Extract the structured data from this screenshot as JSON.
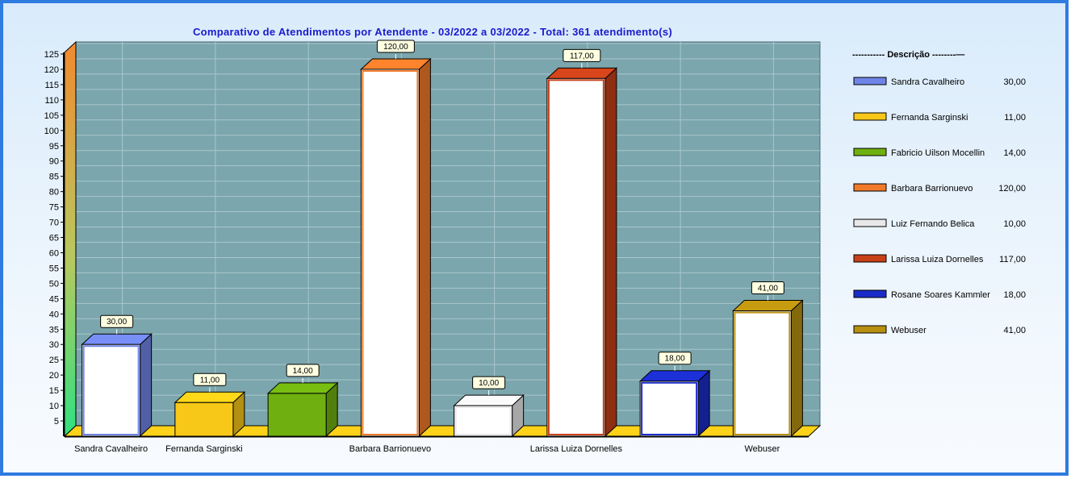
{
  "chart_data": {
    "type": "bar",
    "title": "Comparativo de Atendimentos por Atendente - 03/2022 a 03/2022 - Total: 361 atendimento(s)",
    "categories": [
      "Sandra Cavalheiro",
      "Fernanda Sarginski",
      "Fabricio Uilson Mocellin",
      "Barbara Barrionuevo",
      "Luiz Fernando Belica",
      "Larissa Luiza Dornelles",
      "Rosane Soares Kammler",
      "Webuser"
    ],
    "x_tick_labels": [
      "Sandra Cavalheiro",
      "Fernanda Sarginski",
      "",
      "Barbara Barrionuevo",
      "",
      "Larissa Luiza Dornelles",
      "",
      "Webuser"
    ],
    "values": [
      30,
      11,
      14,
      120,
      10,
      117,
      18,
      41
    ],
    "data_labels": [
      "30,00",
      "11,00",
      "14,00",
      "120,00",
      "10,00",
      "117,00",
      "18,00",
      "41,00"
    ],
    "ylim": [
      0,
      125
    ],
    "y_ticks": [
      5,
      10,
      15,
      20,
      25,
      30,
      35,
      40,
      45,
      50,
      55,
      60,
      65,
      70,
      75,
      80,
      85,
      90,
      95,
      100,
      105,
      110,
      115,
      120,
      125
    ],
    "grid": true,
    "legend": {
      "position": "right",
      "title": "----------- Descrição --------—",
      "entries": [
        {
          "label": "Sandra Cavalheiro",
          "value": "30,00"
        },
        {
          "label": "Fernanda Sarginski",
          "value": "11,00"
        },
        {
          "label": "Fabricio Uilson Mocellin",
          "value": "14,00"
        },
        {
          "label": "Barbara Barrionuevo",
          "value": "120,00"
        },
        {
          "label": "Luiz Fernando Belica",
          "value": "10,00"
        },
        {
          "label": "Larissa Luiza Dornelles",
          "value": "117,00"
        },
        {
          "label": "Rosane Soares Kammler",
          "value": "18,00"
        },
        {
          "label": "Webuser",
          "value": "41,00"
        }
      ]
    },
    "colors": {
      "series": [
        "#6f84e6",
        "#f8c818",
        "#6fb010",
        "#f07a2a",
        "#e8e8e8",
        "#c84018",
        "#1a2cc8",
        "#b89010"
      ],
      "fronts": [
        "#ffffff",
        "#f8c818",
        "#6fb010",
        "#ffffff",
        "#ffffff",
        "#ffffff",
        "#ffffff",
        "#ffffff"
      ],
      "plot_bg": "#7ba6ad",
      "title": "#1a1acc",
      "frame_border": "#2f7be0"
    }
  }
}
